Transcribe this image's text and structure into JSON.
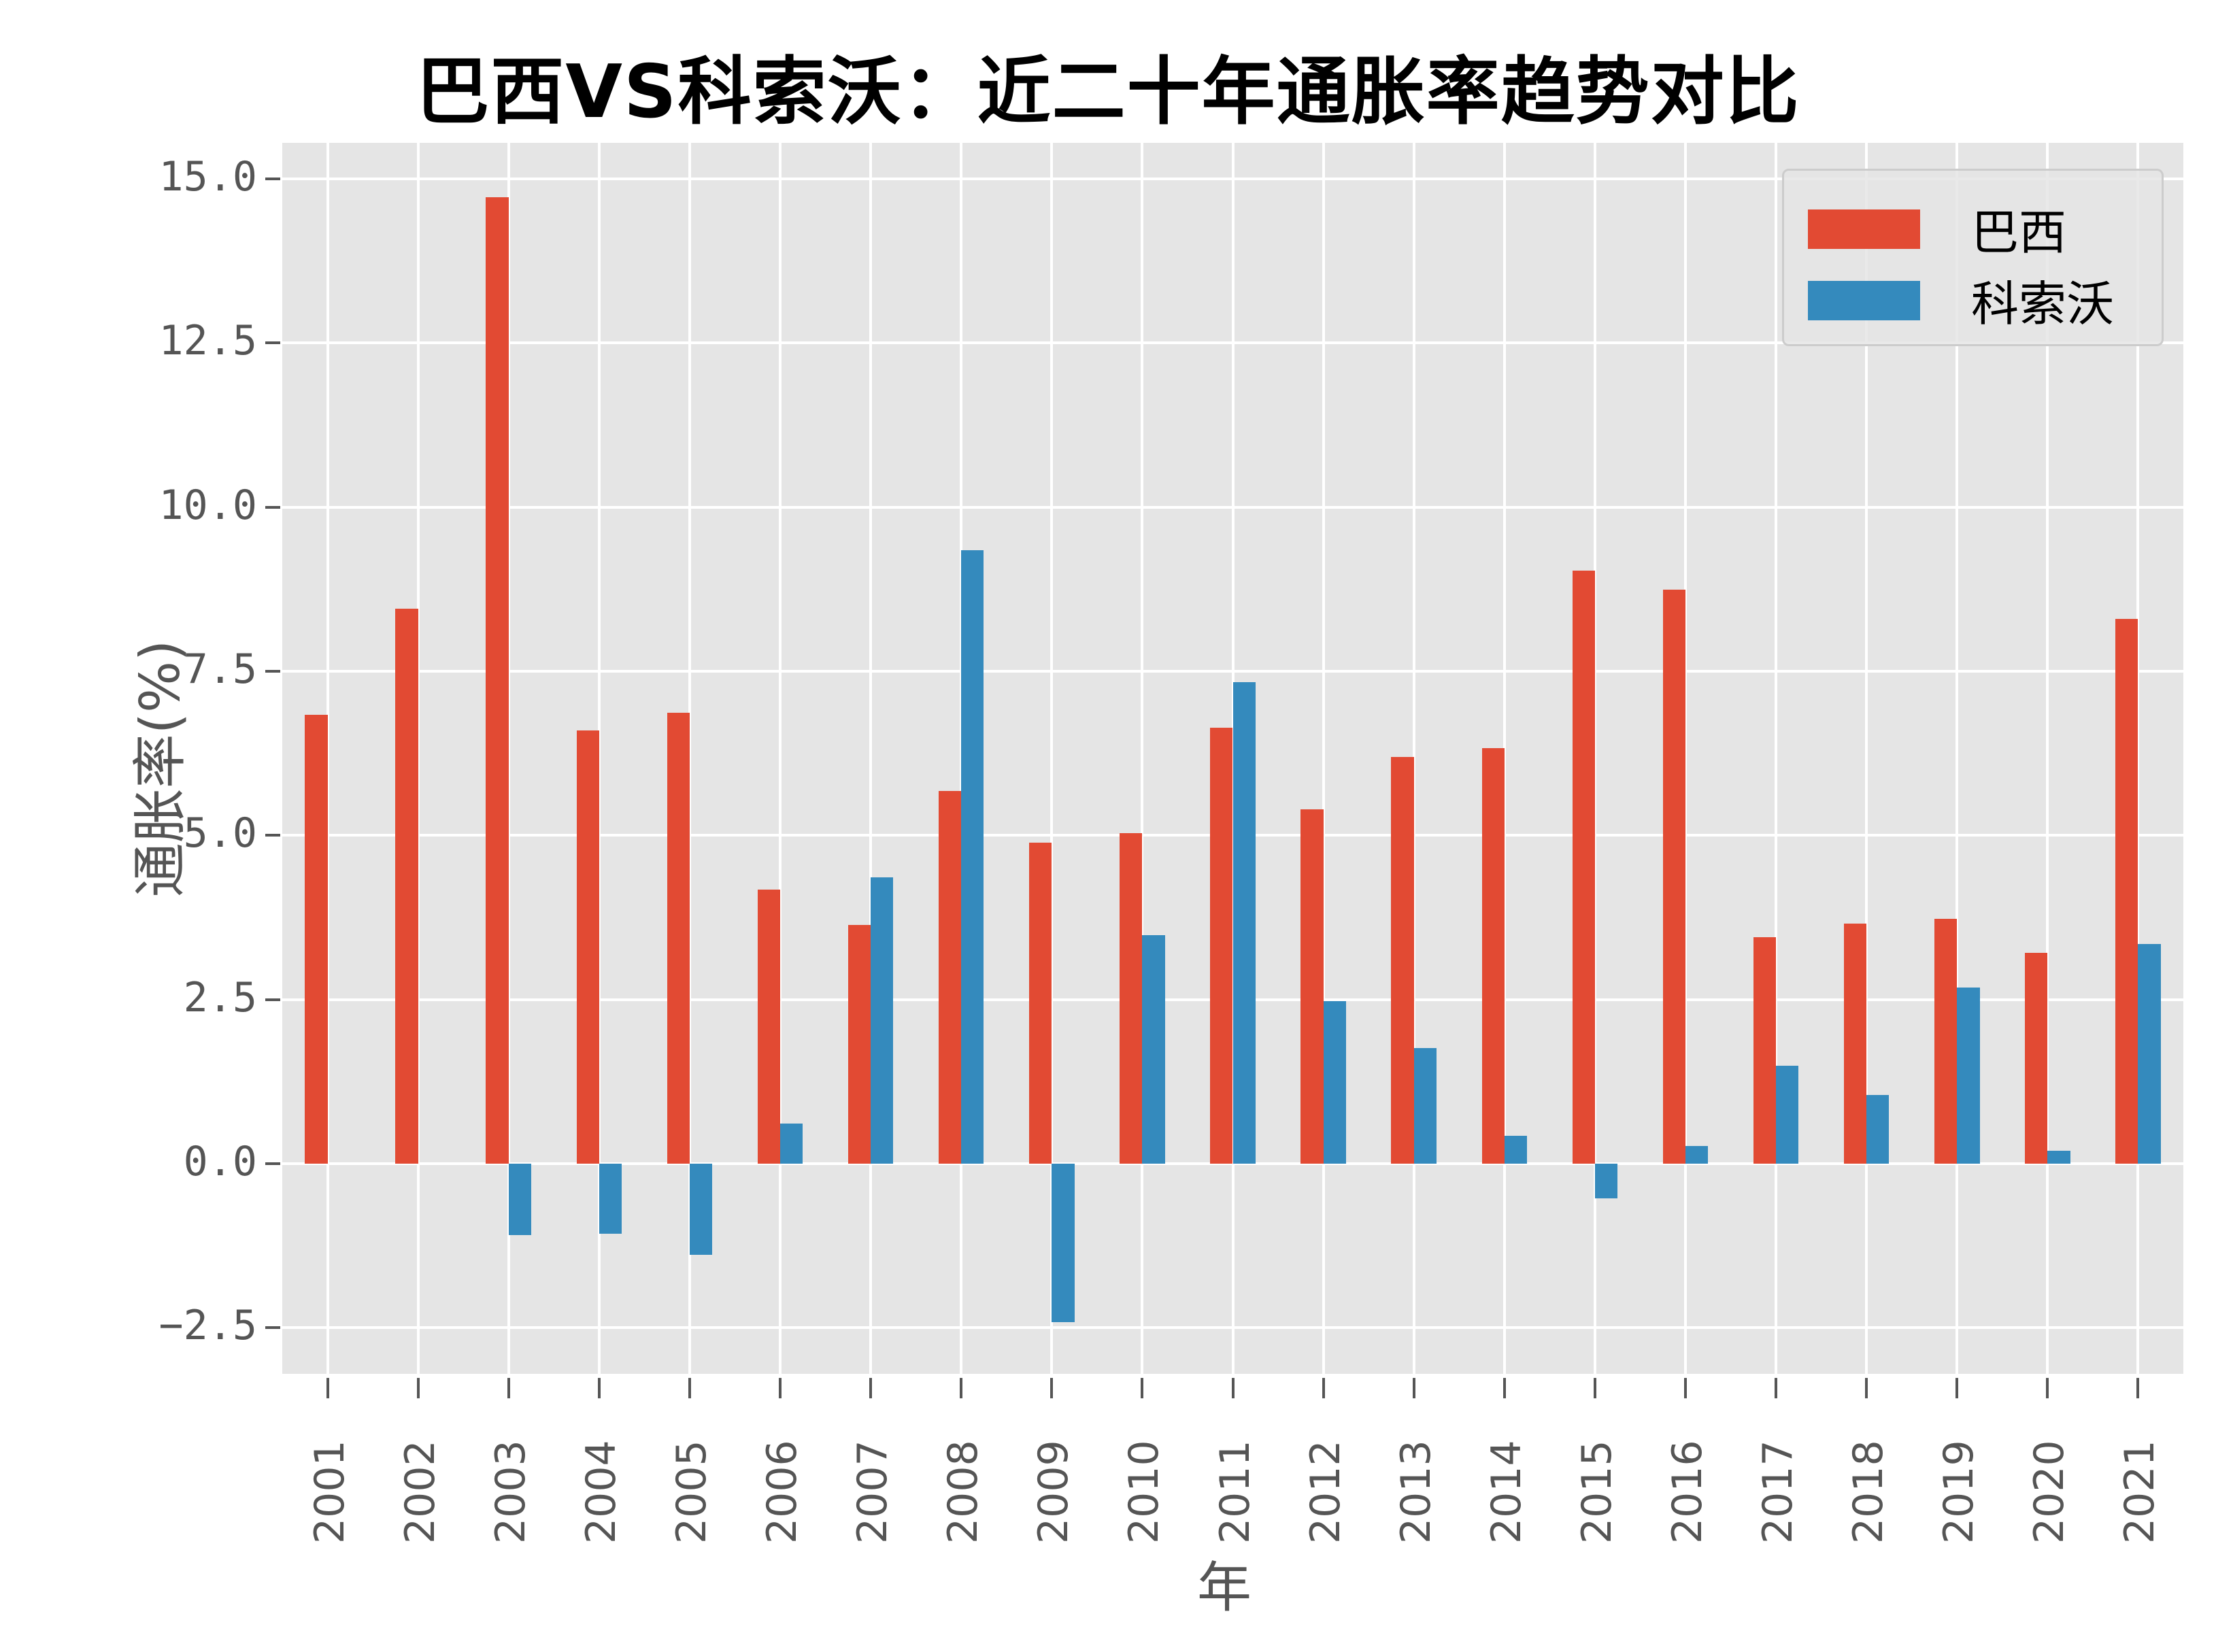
{
  "chart_data": {
    "type": "bar",
    "title": "巴西VS科索沃：近二十年通胀率趋势对比",
    "xlabel": "年",
    "ylabel": "通胀率(%)",
    "ylim": [
      -3.2,
      15.55
    ],
    "yticks": [
      -2.5,
      0.0,
      2.5,
      5.0,
      7.5,
      10.0,
      12.5,
      15.0
    ],
    "ytick_labels": [
      "−2.5",
      "0.0",
      "2.5",
      "5.0",
      "7.5",
      "10.0",
      "12.5",
      "15.0"
    ],
    "grid": true,
    "legend_position": "upper right",
    "categories": [
      "2001",
      "2002",
      "2003",
      "2004",
      "2005",
      "2006",
      "2007",
      "2008",
      "2009",
      "2010",
      "2011",
      "2012",
      "2013",
      "2014",
      "2015",
      "2016",
      "2017",
      "2018",
      "2019",
      "2020",
      "2021"
    ],
    "series": [
      {
        "name": "巴西",
        "color": "#E24A33",
        "values": [
          6.84,
          8.45,
          14.72,
          6.6,
          6.87,
          4.18,
          3.64,
          5.68,
          4.89,
          5.04,
          6.64,
          5.4,
          6.2,
          6.33,
          9.03,
          8.74,
          3.45,
          3.66,
          3.73,
          3.21,
          8.3
        ]
      },
      {
        "name": "科索沃",
        "color": "#348ABD",
        "values": [
          0.0,
          0.0,
          -1.09,
          -1.07,
          -1.39,
          0.61,
          4.36,
          9.35,
          -2.41,
          3.48,
          7.34,
          2.48,
          1.76,
          0.43,
          -0.53,
          0.27,
          1.49,
          1.05,
          2.68,
          0.2,
          3.35
        ]
      }
    ]
  }
}
